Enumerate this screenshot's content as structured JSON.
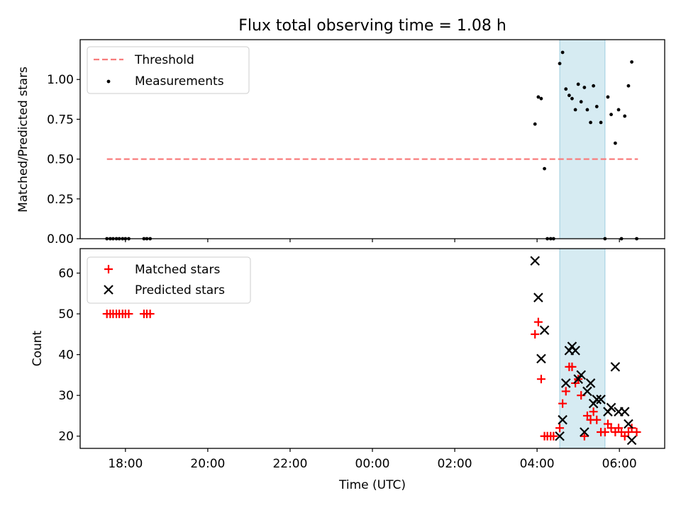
{
  "chart_data": [
    {
      "type": "scatter",
      "title": "Flux total observing time = 1.08 h",
      "xlabel": "",
      "ylabel": "Matched/Predicted stars",
      "xlim": [
        16.9,
        31.1
      ],
      "ylim": [
        0.0,
        1.25
      ],
      "yticks": [
        0.0,
        0.25,
        0.5,
        0.75,
        1.0
      ],
      "ytick_labels": [
        "0.00",
        "0.25",
        "0.50",
        "0.75",
        "1.00"
      ],
      "highlight_span": [
        28.55,
        29.65
      ],
      "threshold": {
        "name": "Threshold",
        "value": 0.5,
        "x_range": [
          17.55,
          30.45
        ],
        "color": "#f87c7c"
      },
      "series": [
        {
          "name": "Measurements",
          "color": "#000000",
          "points": [
            [
              17.55,
              0
            ],
            [
              17.63,
              0
            ],
            [
              17.7,
              0
            ],
            [
              17.78,
              0
            ],
            [
              17.85,
              0
            ],
            [
              17.93,
              0
            ],
            [
              18.0,
              0
            ],
            [
              18.08,
              0
            ],
            [
              18.45,
              0
            ],
            [
              18.52,
              0
            ],
            [
              18.6,
              0
            ],
            [
              27.95,
              0.72
            ],
            [
              28.03,
              0.89
            ],
            [
              28.1,
              0.88
            ],
            [
              28.18,
              0.44
            ],
            [
              28.25,
              0
            ],
            [
              28.33,
              0
            ],
            [
              28.4,
              0
            ],
            [
              28.55,
              1.1
            ],
            [
              28.62,
              1.17
            ],
            [
              28.7,
              0.94
            ],
            [
              28.78,
              0.9
            ],
            [
              28.85,
              0.88
            ],
            [
              28.93,
              0.81
            ],
            [
              29.0,
              0.97
            ],
            [
              29.07,
              0.86
            ],
            [
              29.15,
              0.95
            ],
            [
              29.22,
              0.81
            ],
            [
              29.3,
              0.73
            ],
            [
              29.37,
              0.96
            ],
            [
              29.45,
              0.83
            ],
            [
              29.55,
              0.73
            ],
            [
              29.65,
              0
            ],
            [
              29.72,
              0.89
            ],
            [
              29.8,
              0.78
            ],
            [
              29.9,
              0.6
            ],
            [
              29.98,
              0.81
            ],
            [
              30.05,
              0
            ],
            [
              30.13,
              0.77
            ],
            [
              30.22,
              0.96
            ],
            [
              30.3,
              1.11
            ],
            [
              30.42,
              0
            ]
          ]
        }
      ],
      "legend": [
        "Threshold",
        "Measurements"
      ],
      "legend_location": "top-left"
    },
    {
      "type": "scatter",
      "title": "",
      "xlabel": "Time (UTC)",
      "ylabel": "Count",
      "xlim": [
        16.9,
        31.1
      ],
      "ylim": [
        17,
        66
      ],
      "yticks": [
        20,
        30,
        40,
        50,
        60
      ],
      "ytick_labels": [
        "20",
        "30",
        "40",
        "50",
        "60"
      ],
      "xticks": [
        18,
        20,
        22,
        24,
        26,
        28,
        30
      ],
      "xtick_labels": [
        "18:00",
        "20:00",
        "22:00",
        "00:00",
        "02:00",
        "04:00",
        "06:00"
      ],
      "highlight_span": [
        28.55,
        29.65
      ],
      "series": [
        {
          "name": "Matched stars",
          "marker": "plus",
          "color": "#ff0000",
          "points": [
            [
              17.55,
              50
            ],
            [
              17.63,
              50
            ],
            [
              17.7,
              50
            ],
            [
              17.78,
              50
            ],
            [
              17.85,
              50
            ],
            [
              17.93,
              50
            ],
            [
              18.0,
              50
            ],
            [
              18.08,
              50
            ],
            [
              18.45,
              50
            ],
            [
              18.52,
              50
            ],
            [
              18.6,
              50
            ],
            [
              27.95,
              45
            ],
            [
              28.03,
              48
            ],
            [
              28.1,
              34
            ],
            [
              28.18,
              20
            ],
            [
              28.25,
              20
            ],
            [
              28.33,
              20
            ],
            [
              28.4,
              20
            ],
            [
              28.55,
              22
            ],
            [
              28.62,
              28
            ],
            [
              28.7,
              31
            ],
            [
              28.78,
              37
            ],
            [
              28.85,
              37
            ],
            [
              28.93,
              33
            ],
            [
              29.0,
              34
            ],
            [
              29.07,
              30
            ],
            [
              29.15,
              20
            ],
            [
              29.22,
              25
            ],
            [
              29.3,
              24
            ],
            [
              29.37,
              26
            ],
            [
              29.45,
              24
            ],
            [
              29.55,
              21
            ],
            [
              29.65,
              21
            ],
            [
              29.72,
              23
            ],
            [
              29.8,
              22
            ],
            [
              29.9,
              21
            ],
            [
              29.98,
              22
            ],
            [
              30.05,
              21
            ],
            [
              30.13,
              20
            ],
            [
              30.22,
              21
            ],
            [
              30.3,
              22
            ],
            [
              30.42,
              21
            ]
          ]
        },
        {
          "name": "Predicted stars",
          "marker": "x",
          "color": "#000000",
          "points": [
            [
              27.95,
              63
            ],
            [
              28.03,
              54
            ],
            [
              28.1,
              39
            ],
            [
              28.18,
              46
            ],
            [
              28.55,
              20
            ],
            [
              28.62,
              24
            ],
            [
              28.7,
              33
            ],
            [
              28.78,
              41
            ],
            [
              28.85,
              42
            ],
            [
              28.93,
              41
            ],
            [
              29.0,
              34
            ],
            [
              29.07,
              35
            ],
            [
              29.15,
              21
            ],
            [
              29.22,
              31
            ],
            [
              29.3,
              33
            ],
            [
              29.37,
              28
            ],
            [
              29.45,
              29
            ],
            [
              29.55,
              29
            ],
            [
              29.72,
              26
            ],
            [
              29.8,
              27
            ],
            [
              29.9,
              37
            ],
            [
              29.98,
              26
            ],
            [
              30.13,
              26
            ],
            [
              30.22,
              23
            ],
            [
              30.3,
              19
            ]
          ]
        }
      ],
      "legend": [
        "Matched stars",
        "Predicted stars"
      ],
      "legend_location": "top-left"
    }
  ]
}
